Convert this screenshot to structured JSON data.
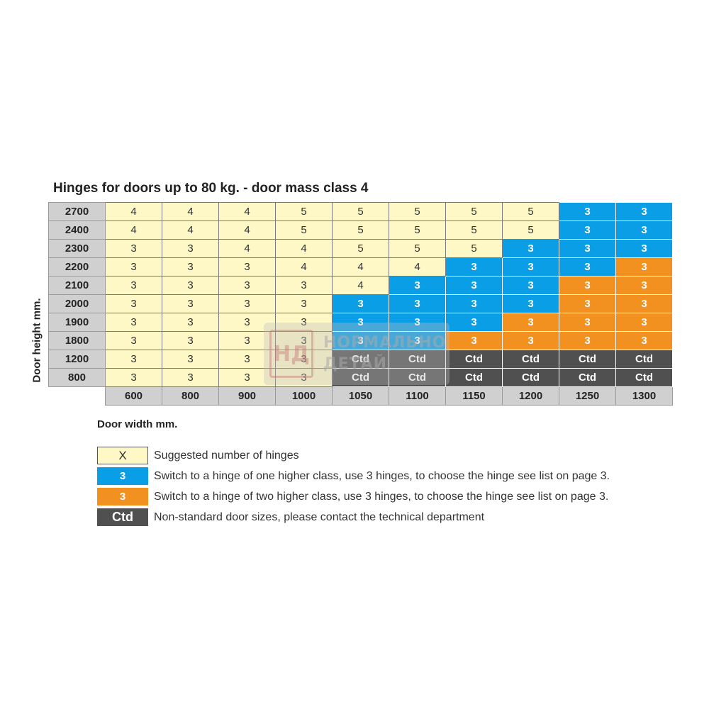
{
  "title": "Hinges for doors up to 80 kg. - door mass class 4",
  "y_axis_label": "Door height mm.",
  "x_axis_label": "Door width mm.",
  "colors": {
    "standard": "#fdf8c6",
    "blue": "#0a9ee6",
    "orange": "#f29120",
    "ctd": "#505050",
    "header": "#d0d0d0"
  },
  "table": {
    "widths": [
      "600",
      "800",
      "900",
      "1000",
      "1050",
      "1100",
      "1150",
      "1200",
      "1250",
      "1300"
    ],
    "rows": [
      {
        "height": "2700",
        "cells": [
          {
            "v": "4",
            "t": "std"
          },
          {
            "v": "4",
            "t": "std"
          },
          {
            "v": "4",
            "t": "std"
          },
          {
            "v": "5",
            "t": "std"
          },
          {
            "v": "5",
            "t": "std"
          },
          {
            "v": "5",
            "t": "std"
          },
          {
            "v": "5",
            "t": "std"
          },
          {
            "v": "5",
            "t": "std"
          },
          {
            "v": "3",
            "t": "blue"
          },
          {
            "v": "3",
            "t": "blue"
          }
        ]
      },
      {
        "height": "2400",
        "cells": [
          {
            "v": "4",
            "t": "std"
          },
          {
            "v": "4",
            "t": "std"
          },
          {
            "v": "4",
            "t": "std"
          },
          {
            "v": "5",
            "t": "std"
          },
          {
            "v": "5",
            "t": "std"
          },
          {
            "v": "5",
            "t": "std"
          },
          {
            "v": "5",
            "t": "std"
          },
          {
            "v": "5",
            "t": "std"
          },
          {
            "v": "3",
            "t": "blue"
          },
          {
            "v": "3",
            "t": "blue"
          }
        ]
      },
      {
        "height": "2300",
        "cells": [
          {
            "v": "3",
            "t": "std"
          },
          {
            "v": "3",
            "t": "std"
          },
          {
            "v": "4",
            "t": "std"
          },
          {
            "v": "4",
            "t": "std"
          },
          {
            "v": "5",
            "t": "std"
          },
          {
            "v": "5",
            "t": "std"
          },
          {
            "v": "5",
            "t": "std"
          },
          {
            "v": "3",
            "t": "blue"
          },
          {
            "v": "3",
            "t": "blue"
          },
          {
            "v": "3",
            "t": "blue"
          }
        ]
      },
      {
        "height": "2200",
        "cells": [
          {
            "v": "3",
            "t": "std"
          },
          {
            "v": "3",
            "t": "std"
          },
          {
            "v": "3",
            "t": "std"
          },
          {
            "v": "4",
            "t": "std"
          },
          {
            "v": "4",
            "t": "std"
          },
          {
            "v": "4",
            "t": "std"
          },
          {
            "v": "3",
            "t": "blue"
          },
          {
            "v": "3",
            "t": "blue"
          },
          {
            "v": "3",
            "t": "blue"
          },
          {
            "v": "3",
            "t": "orange"
          }
        ]
      },
      {
        "height": "2100",
        "cells": [
          {
            "v": "3",
            "t": "std"
          },
          {
            "v": "3",
            "t": "std"
          },
          {
            "v": "3",
            "t": "std"
          },
          {
            "v": "3",
            "t": "std"
          },
          {
            "v": "4",
            "t": "std"
          },
          {
            "v": "3",
            "t": "blue"
          },
          {
            "v": "3",
            "t": "blue"
          },
          {
            "v": "3",
            "t": "blue"
          },
          {
            "v": "3",
            "t": "orange"
          },
          {
            "v": "3",
            "t": "orange"
          }
        ]
      },
      {
        "height": "2000",
        "cells": [
          {
            "v": "3",
            "t": "std"
          },
          {
            "v": "3",
            "t": "std"
          },
          {
            "v": "3",
            "t": "std"
          },
          {
            "v": "3",
            "t": "std"
          },
          {
            "v": "3",
            "t": "blue"
          },
          {
            "v": "3",
            "t": "blue"
          },
          {
            "v": "3",
            "t": "blue"
          },
          {
            "v": "3",
            "t": "blue"
          },
          {
            "v": "3",
            "t": "orange"
          },
          {
            "v": "3",
            "t": "orange"
          }
        ]
      },
      {
        "height": "1900",
        "cells": [
          {
            "v": "3",
            "t": "std"
          },
          {
            "v": "3",
            "t": "std"
          },
          {
            "v": "3",
            "t": "std"
          },
          {
            "v": "3",
            "t": "std"
          },
          {
            "v": "3",
            "t": "blue"
          },
          {
            "v": "3",
            "t": "blue"
          },
          {
            "v": "3",
            "t": "blue"
          },
          {
            "v": "3",
            "t": "orange"
          },
          {
            "v": "3",
            "t": "orange"
          },
          {
            "v": "3",
            "t": "orange"
          }
        ]
      },
      {
        "height": "1800",
        "cells": [
          {
            "v": "3",
            "t": "std"
          },
          {
            "v": "3",
            "t": "std"
          },
          {
            "v": "3",
            "t": "std"
          },
          {
            "v": "3",
            "t": "std"
          },
          {
            "v": "3",
            "t": "blue"
          },
          {
            "v": "3",
            "t": "blue"
          },
          {
            "v": "3",
            "t": "orange"
          },
          {
            "v": "3",
            "t": "orange"
          },
          {
            "v": "3",
            "t": "orange"
          },
          {
            "v": "3",
            "t": "orange"
          }
        ]
      },
      {
        "height": "1200",
        "cells": [
          {
            "v": "3",
            "t": "std"
          },
          {
            "v": "3",
            "t": "std"
          },
          {
            "v": "3",
            "t": "std"
          },
          {
            "v": "3",
            "t": "std"
          },
          {
            "v": "Ctd",
            "t": "ctd"
          },
          {
            "v": "Ctd",
            "t": "ctd"
          },
          {
            "v": "Ctd",
            "t": "ctd"
          },
          {
            "v": "Ctd",
            "t": "ctd"
          },
          {
            "v": "Ctd",
            "t": "ctd"
          },
          {
            "v": "Ctd",
            "t": "ctd"
          }
        ]
      },
      {
        "height": "800",
        "cells": [
          {
            "v": "3",
            "t": "std"
          },
          {
            "v": "3",
            "t": "std"
          },
          {
            "v": "3",
            "t": "std"
          },
          {
            "v": "3",
            "t": "std"
          },
          {
            "v": "Ctd",
            "t": "ctd"
          },
          {
            "v": "Ctd",
            "t": "ctd"
          },
          {
            "v": "Ctd",
            "t": "ctd"
          },
          {
            "v": "Ctd",
            "t": "ctd"
          },
          {
            "v": "Ctd",
            "t": "ctd"
          },
          {
            "v": "Ctd",
            "t": "ctd"
          }
        ]
      }
    ]
  },
  "legend": [
    {
      "swatch": "X",
      "type": "std",
      "text": "Suggested number of hinges"
    },
    {
      "swatch": "3",
      "type": "blue",
      "text": "Switch to a hinge of one higher class, use 3 hinges, to choose the hinge see list on page 3."
    },
    {
      "swatch": "3",
      "type": "orange",
      "text": "Switch to a hinge of two higher class, use 3 hinges, to choose the hinge see list on page 3."
    },
    {
      "swatch": "Ctd",
      "type": "ctd",
      "text": "Non-standard door sizes, please contact the technical department"
    }
  ],
  "watermark": {
    "logo": "НД",
    "line1": "НОРМАЛЬНО",
    "line2": "ДЕТАЙ"
  }
}
